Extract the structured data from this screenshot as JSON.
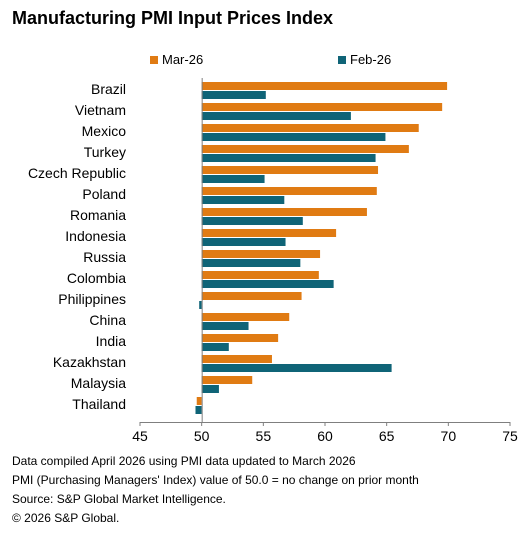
{
  "chart_data": {
    "type": "bar",
    "orientation": "horizontal",
    "title": "Manufacturing PMI Input Prices Index",
    "categories": [
      "Brazil",
      "Vietnam",
      "Mexico",
      "Turkey",
      "Czech Republic",
      "Poland",
      "Romania",
      "Indonesia",
      "Russia",
      "Colombia",
      "Philippines",
      "China",
      "India",
      "Kazakhstan",
      "Malaysia",
      "Thailand"
    ],
    "series": [
      {
        "name": "Mar-26",
        "color": "#e07b13",
        "values": [
          69.9,
          69.5,
          67.6,
          66.8,
          64.3,
          64.2,
          63.4,
          60.9,
          59.6,
          59.5,
          58.1,
          57.1,
          56.2,
          55.7,
          54.1,
          49.6
        ]
      },
      {
        "name": "Feb-26",
        "color": "#0f6477",
        "values": [
          55.2,
          62.1,
          64.9,
          64.1,
          55.1,
          56.7,
          58.2,
          56.8,
          58.0,
          60.7,
          49.8,
          53.8,
          52.2,
          65.4,
          51.4,
          49.5
        ]
      }
    ],
    "xlim": [
      45,
      75
    ],
    "xticks": [
      45,
      50,
      55,
      60,
      65,
      70,
      75
    ],
    "baseline": 50,
    "grid": false,
    "legend_position": "top"
  },
  "notes": [
    "Data compiled April 2026 using PMI data updated to March 2026",
    "PMI (Purchasing Managers' Index) value of 50.0 = no change on prior month",
    "Source: S&P Global Market Intelligence.",
    "© 2026 S&P Global."
  ]
}
